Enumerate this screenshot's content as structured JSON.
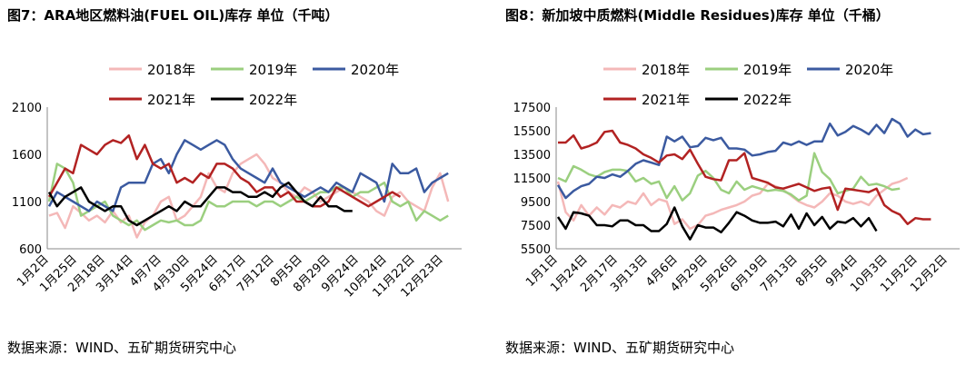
{
  "charts": [
    {
      "title": "图7：ARA地区燃料油(FUEL OIL)库存 单位（千吨）",
      "source": "数据来源：WIND、五矿期货研究中心"
    },
    {
      "title": "图8：新加坡中质燃料(Middle Residues)库存 单位（千桶）",
      "source": "数据来源：WIND、五矿期货研究中心"
    }
  ],
  "chart_data": [
    {
      "type": "line",
      "title": "图7：ARA地区燃料油(FUEL OIL)库存 单位（千吨）",
      "xlabel": "",
      "ylabel": "",
      "ylim": [
        600,
        2100
      ],
      "yticks": [
        600,
        1100,
        1600,
        2100
      ],
      "x_tick_labels": [
        "1月2日",
        "1月25日",
        "2月18日",
        "3月14日",
        "4月7日",
        "4月30日",
        "5月24日",
        "6月17日",
        "7月12日",
        "8月5日",
        "8月29日",
        "9月24日",
        "10月24日",
        "11月22日",
        "12月23日"
      ],
      "grid": false,
      "legend": "top",
      "series": [
        {
          "name": "2018年",
          "color": "#f4b8b8",
          "values": [
            950,
            980,
            820,
            1050,
            980,
            900,
            950,
            880,
            1000,
            880,
            950,
            720,
            880,
            950,
            1100,
            1150,
            900,
            950,
            1050,
            1150,
            1400,
            1250,
            1200,
            1400,
            1500,
            1550,
            1600,
            1500,
            1350,
            1300,
            1200,
            1150,
            1250,
            1200,
            1100,
            1150,
            1200,
            1250,
            1200,
            1150,
            1100,
            1000,
            950,
            1150,
            1200,
            1100,
            1050,
            1000,
            1250,
            1400,
            1100
          ]
        },
        {
          "name": "2019年",
          "color": "#9bcf7f",
          "values": [
            1100,
            1500,
            1450,
            1300,
            950,
            1000,
            1050,
            1100,
            950,
            900,
            850,
            900,
            800,
            850,
            900,
            880,
            900,
            850,
            850,
            900,
            1100,
            1050,
            1050,
            1100,
            1100,
            1100,
            1050,
            1100,
            1100,
            1050,
            1100,
            1150,
            1100,
            1150,
            1200,
            1200,
            1250,
            1250,
            1150,
            1200,
            1200,
            1250,
            1300,
            1100,
            1050,
            1100,
            900,
            1000,
            950,
            900,
            950
          ]
        },
        {
          "name": "2020年",
          "color": "#3b5aa0",
          "values": [
            1050,
            1200,
            1150,
            1100,
            1050,
            1000,
            1100,
            1050,
            1000,
            1250,
            1300,
            1300,
            1300,
            1500,
            1550,
            1400,
            1600,
            1750,
            1700,
            1650,
            1700,
            1750,
            1700,
            1550,
            1450,
            1400,
            1350,
            1300,
            1450,
            1300,
            1250,
            1200,
            1150,
            1200,
            1250,
            1200,
            1300,
            1250,
            1200,
            1400,
            1350,
            1300,
            1100,
            1500,
            1400,
            1400,
            1450,
            1200,
            1300,
            1350,
            1400
          ]
        },
        {
          "name": "2021年",
          "color": "#b22222",
          "values": [
            1150,
            1300,
            1450,
            1400,
            1700,
            1650,
            1600,
            1700,
            1750,
            1720,
            1800,
            1550,
            1700,
            1500,
            1450,
            1500,
            1300,
            1350,
            1300,
            1400,
            1350,
            1500,
            1500,
            1450,
            1350,
            1300,
            1200,
            1250,
            1250,
            1150,
            1200,
            1100,
            1100,
            1050,
            1050,
            1100,
            1250,
            1200,
            1150,
            1100,
            1050,
            1100,
            1150,
            1200,
            1150
          ]
        },
        {
          "name": "2022年",
          "color": "#000000",
          "values": [
            1200,
            1050,
            1150,
            1200,
            1250,
            1100,
            1050,
            1000,
            1050,
            1050,
            900,
            850,
            900,
            950,
            1000,
            1050,
            1000,
            1100,
            1050,
            1050,
            1150,
            1250,
            1250,
            1200,
            1200,
            1150,
            1150,
            1200,
            1150,
            1250,
            1300,
            1200,
            1100,
            1050,
            1150,
            1050,
            1050,
            1000,
            1000
          ]
        }
      ]
    },
    {
      "type": "line",
      "title": "图8：新加坡中质燃料(Middle Residues)库存 单位（千桶）",
      "xlabel": "",
      "ylabel": "",
      "ylim": [
        5500,
        17500
      ],
      "yticks": [
        5500,
        7500,
        9500,
        11500,
        13500,
        15500,
        17500
      ],
      "x_tick_labels": [
        "1月1日",
        "1月24日",
        "2月17日",
        "3月13日",
        "4月6日",
        "4月29日",
        "5月26日",
        "6月19日",
        "7月13日",
        "8月5日",
        "9月4日",
        "10月3日",
        "11月2日",
        "12月2日"
      ],
      "grid": false,
      "legend": "top",
      "series": [
        {
          "name": "2018年",
          "color": "#f4b8b8",
          "values": [
            11200,
            8600,
            7900,
            9200,
            8300,
            9000,
            8400,
            9200,
            9000,
            9500,
            9300,
            10200,
            9200,
            9700,
            9500,
            7600,
            8000,
            7200,
            7500,
            8300,
            8500,
            8800,
            9000,
            9200,
            9500,
            10000,
            10200,
            11000,
            10800,
            10500,
            10000,
            9500,
            9200,
            9000,
            9500,
            10200,
            10000,
            9500,
            9300,
            9500,
            9200,
            10000,
            10500,
            11000,
            11200,
            11500
          ]
        },
        {
          "name": "2019年",
          "color": "#9bcf7f",
          "values": [
            11500,
            11200,
            12500,
            12200,
            11800,
            11600,
            12000,
            12200,
            12200,
            12100,
            11200,
            11500,
            11000,
            11200,
            9800,
            10800,
            9600,
            10200,
            11700,
            12100,
            11500,
            10500,
            10200,
            11200,
            10500,
            10800,
            10600,
            10400,
            10500,
            10400,
            10100,
            9600,
            10000,
            13600,
            12000,
            11400,
            10200,
            10400,
            10600,
            11600,
            10900,
            11000,
            10800,
            10500,
            10600
          ]
        },
        {
          "name": "2020年",
          "color": "#3b5aa0",
          "values": [
            10900,
            9800,
            10400,
            10800,
            11000,
            11600,
            11500,
            11800,
            11600,
            12100,
            12700,
            13000,
            12800,
            12600,
            15000,
            14600,
            15000,
            14100,
            14200,
            14900,
            14700,
            14900,
            14000,
            14000,
            13900,
            13400,
            13500,
            13700,
            13800,
            14500,
            14300,
            14600,
            14300,
            14600,
            14600,
            16100,
            15100,
            15400,
            15900,
            15600,
            15200,
            16000,
            15300,
            16500,
            16100,
            15000,
            15600,
            15200,
            15300
          ]
        },
        {
          "name": "2021年",
          "color": "#b22222",
          "values": [
            14500,
            14500,
            15100,
            14000,
            14200,
            14500,
            15400,
            15500,
            14500,
            14300,
            14000,
            13500,
            13200,
            12800,
            13400,
            13500,
            13100,
            13900,
            12700,
            11600,
            11400,
            11300,
            13000,
            13000,
            13600,
            11500,
            11300,
            11100,
            10700,
            10600,
            10800,
            11000,
            10700,
            10400,
            10600,
            10700,
            8800,
            10600,
            10500,
            10400,
            10300,
            10600,
            9200,
            8700,
            8400,
            7600,
            8100,
            8000,
            8000
          ]
        },
        {
          "name": "2022年",
          "color": "#000000",
          "values": [
            8200,
            7200,
            8600,
            8500,
            8300,
            7500,
            7500,
            7400,
            7900,
            7900,
            7500,
            7500,
            7000,
            7000,
            7600,
            9000,
            7400,
            6300,
            7500,
            7300,
            7300,
            6900,
            7700,
            8600,
            8300,
            7900,
            7700,
            7700,
            7800,
            7400,
            8400,
            7200,
            8500,
            7500,
            8200,
            7200,
            7800,
            7700,
            8100,
            7400,
            8100,
            7000
          ]
        }
      ]
    }
  ]
}
